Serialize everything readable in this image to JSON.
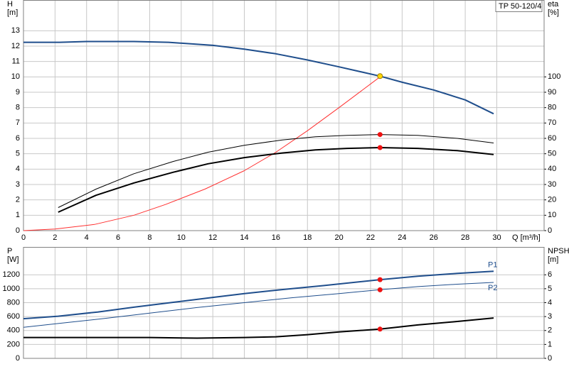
{
  "chart_data": [
    {
      "type": "line",
      "annotation": "TP 50-120/4",
      "ylabel": "H",
      "yunit": "[m]",
      "y2label": "eta",
      "y2unit": "[%]",
      "xlabel": "Q [m³/h]",
      "xlim": [
        0,
        33
      ],
      "xticks": [
        0,
        2,
        4,
        6,
        8,
        10,
        12,
        14,
        16,
        18,
        20,
        22,
        24,
        26,
        28,
        30
      ],
      "ylim": [
        0,
        15
      ],
      "yticks": [
        0,
        1,
        2,
        3,
        4,
        5,
        6,
        7,
        8,
        9,
        10,
        11,
        12,
        13
      ],
      "y2lim": [
        0,
        150
      ],
      "y2ticks": [
        0,
        10,
        20,
        30,
        40,
        50,
        60,
        70,
        80,
        90,
        100
      ],
      "grid": true,
      "show_xtick_labels": true,
      "series": [
        {
          "color": "#1f4e8c",
          "style": "thick",
          "x": [
            0,
            2.3,
            4,
            7,
            9.2,
            12,
            14,
            16,
            18,
            20,
            22.6,
            24,
            26,
            28,
            29.8
          ],
          "values": [
            12.25,
            12.25,
            12.3,
            12.3,
            12.25,
            12.05,
            11.8,
            11.5,
            11.1,
            10.65,
            10.05,
            9.65,
            9.15,
            8.5,
            7.6
          ]
        },
        {
          "color": "#ff3030",
          "style": "thin",
          "axis": "y2",
          "x": [
            0,
            2,
            4.5,
            7,
            9,
            11.5,
            14,
            16,
            18,
            20,
            22.6
          ],
          "values": [
            0,
            1,
            4,
            10,
            17,
            27,
            39,
            51,
            65,
            80,
            100
          ]
        },
        {
          "color": "#000000",
          "style": "thin",
          "axis": "y2",
          "x": [
            2.2,
            4.6,
            7,
            9.5,
            11.7,
            14,
            16.4,
            18.5,
            20.5,
            22.6,
            25,
            27.5,
            29.8
          ],
          "values": [
            15,
            27,
            37,
            45,
            51,
            55.5,
            59,
            61,
            62,
            62.5,
            62,
            60,
            57
          ]
        },
        {
          "color": "#000000",
          "style": "thick",
          "axis": "y2",
          "x": [
            2.2,
            4.6,
            7,
            9.5,
            11.7,
            14,
            16.4,
            18.5,
            20.5,
            22.6,
            25,
            27.5,
            29.8
          ],
          "values": [
            12,
            23,
            31,
            38,
            43.5,
            47.5,
            50.5,
            52.5,
            53.5,
            54,
            53.5,
            52,
            49.5
          ]
        },
        {
          "color": "#ffd700",
          "style": "point",
          "x": [
            22.6
          ],
          "values": [
            10.05
          ]
        },
        {
          "color": "#ee1111",
          "style": "point",
          "axis": "y2",
          "x": [
            22.6,
            22.6
          ],
          "values": [
            62.5,
            54
          ]
        }
      ]
    },
    {
      "type": "line",
      "ylabel": "P",
      "yunit": "[W]",
      "y2label": "NPSH",
      "y2unit": "[m]",
      "xlim": [
        0,
        33
      ],
      "xticks": [
        0,
        2,
        4,
        6,
        8,
        10,
        12,
        14,
        16,
        18,
        20,
        22,
        24,
        26,
        28,
        30
      ],
      "ylim": [
        0,
        1600
      ],
      "yticks": [
        0,
        200,
        400,
        600,
        800,
        {
          "value": 1000,
          "label": "1000"
        },
        1200
      ],
      "y2lim": [
        0,
        8
      ],
      "y2ticks": [
        0,
        1,
        2,
        3,
        4,
        5,
        6
      ],
      "grid": true,
      "show_xtick_labels": false,
      "series": [
        {
          "name": "P1",
          "color": "#1f4e8c",
          "style": "thick",
          "x": [
            0,
            2.2,
            4.7,
            7,
            9.5,
            12,
            14,
            16.5,
            19,
            22.6,
            25,
            27.5,
            29.8
          ],
          "values": [
            570,
            605,
            665,
            735,
            805,
            875,
            930,
            990,
            1045,
            1130,
            1180,
            1220,
            1250
          ]
        },
        {
          "name": "P2",
          "color": "#1f4e8c",
          "style": "thin",
          "x": [
            0,
            2.2,
            5,
            8,
            11,
            14,
            17,
            20,
            22.6,
            25,
            27.5,
            29.8
          ],
          "values": [
            445,
            500,
            570,
            650,
            730,
            800,
            870,
            930,
            985,
            1030,
            1065,
            1090
          ]
        },
        {
          "color": "#000000",
          "style": "thick",
          "axis": "y2",
          "x": [
            0,
            2.2,
            5,
            8,
            11,
            14,
            16,
            18,
            20,
            22.6,
            25,
            27.5,
            29.8
          ],
          "values": [
            1.5,
            1.5,
            1.5,
            1.5,
            1.45,
            1.5,
            1.55,
            1.7,
            1.9,
            2.1,
            2.4,
            2.65,
            2.9
          ]
        },
        {
          "color": "#ee1111",
          "style": "point",
          "x": [
            22.6,
            22.6
          ],
          "values": [
            1130,
            985
          ]
        },
        {
          "color": "#ee1111",
          "style": "point",
          "axis": "y2",
          "x": [
            22.6
          ],
          "values": [
            2.1
          ]
        }
      ]
    }
  ]
}
